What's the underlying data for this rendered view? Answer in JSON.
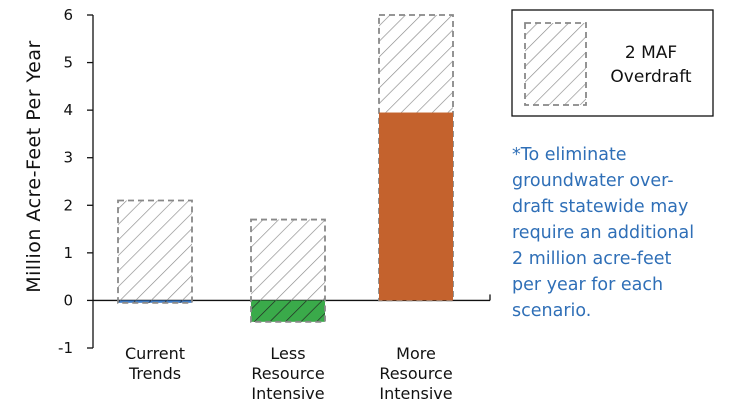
{
  "chart_data": {
    "type": "bar",
    "ylabel": "Million Acre-Feet Per Year",
    "ylim": [
      -1,
      6
    ],
    "yticks": [
      "-1",
      "0",
      "1",
      "2",
      "3",
      "4",
      "5",
      "6"
    ],
    "categories": [
      {
        "lines": [
          "Current",
          "Trends"
        ]
      },
      {
        "lines": [
          "Less",
          "Resource",
          "Intensive"
        ]
      },
      {
        "lines": [
          "More",
          "Resource",
          "Intensive"
        ]
      }
    ],
    "series": [
      {
        "values": [
          -0.05,
          -0.45,
          3.95
        ],
        "colors": [
          "#3d7cc9",
          "#3aaa4a",
          "#c4622d"
        ]
      },
      {
        "name": "2 MAF Overdraft",
        "values": [
          2.1,
          1.7,
          6.0
        ],
        "style": "hatched-dashed-outline"
      }
    ],
    "legend": {
      "lines": [
        "2 MAF",
        "Overdraft"
      ],
      "placement": "top-right"
    },
    "grid": false
  },
  "note": "*To eliminate\ngroundwater over-\ndraft statewide may\nrequire an additional\n2 million acre-feet\nper year for each\nscenario.",
  "colors": {
    "note": "#2f6fb7",
    "hatch": "#888888"
  }
}
